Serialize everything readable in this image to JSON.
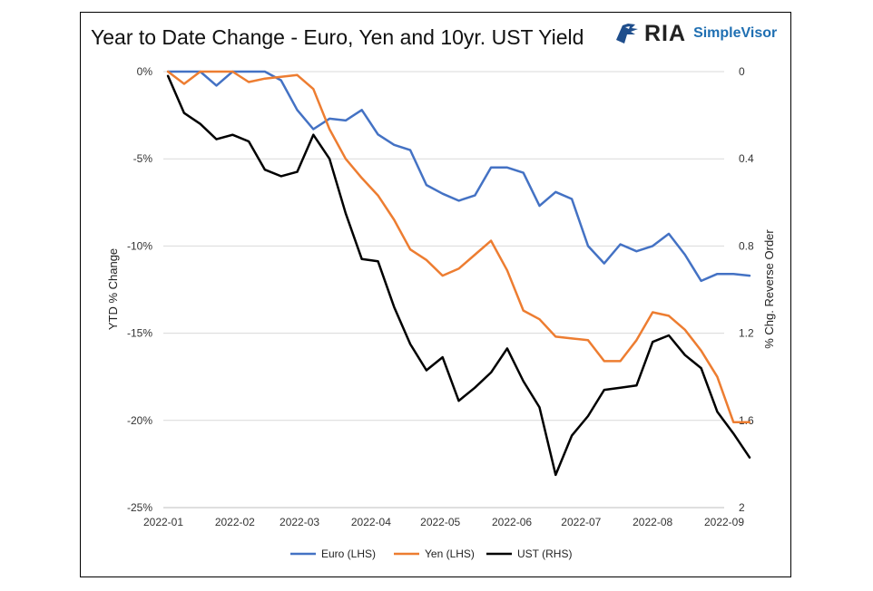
{
  "header": {
    "title": "Year to Date Change - Euro, Yen and 10yr. UST Yield",
    "logo_ria": "RIA",
    "logo_sv": "SimpleVisor"
  },
  "colors": {
    "euro": "#4472C4",
    "yen": "#ED7D31",
    "ust": "#000000",
    "grid": "#d9d9d9"
  },
  "chart_data": {
    "type": "line",
    "title": "Year to Date Change - Euro, Yen and 10yr. UST Yield",
    "xlabel": "",
    "ylabel_left": "YTD % Change",
    "ylabel_right": "% Chg. Reverse Order",
    "x_ticks": [
      "2022-01",
      "2022-02",
      "2022-03",
      "2022-04",
      "2022-05",
      "2022-06",
      "2022-07",
      "2022-08",
      "2022-09"
    ],
    "y_left_ticks": [
      "0%",
      "-5%",
      "-10%",
      "-15%",
      "-20%",
      "-25%"
    ],
    "y_left_lim": [
      -25,
      0
    ],
    "y_right_ticks": [
      "0",
      "0.4",
      "0.8",
      "1.2",
      "1.6",
      "2"
    ],
    "y_right_lim": [
      0,
      2
    ],
    "y_right_reversed": true,
    "grid": true,
    "legend_position": "bottom",
    "x": [
      "2022-01-03",
      "2022-01-10",
      "2022-01-17",
      "2022-01-24",
      "2022-01-31",
      "2022-02-07",
      "2022-02-14",
      "2022-02-21",
      "2022-02-28",
      "2022-03-07",
      "2022-03-14",
      "2022-03-21",
      "2022-03-28",
      "2022-04-04",
      "2022-04-11",
      "2022-04-18",
      "2022-04-25",
      "2022-05-02",
      "2022-05-09",
      "2022-05-16",
      "2022-05-23",
      "2022-05-30",
      "2022-06-06",
      "2022-06-13",
      "2022-06-20",
      "2022-06-27",
      "2022-07-04",
      "2022-07-11",
      "2022-07-18",
      "2022-07-25",
      "2022-08-01",
      "2022-08-08",
      "2022-08-15",
      "2022-08-22",
      "2022-08-29",
      "2022-09-05",
      "2022-09-12"
    ],
    "series": [
      {
        "name": "Euro (LHS)",
        "axis": "left",
        "color": "#4472C4",
        "values": [
          0,
          0,
          0,
          -0.8,
          0,
          0,
          0,
          -0.5,
          -2.2,
          -3.3,
          -2.7,
          -2.8,
          -2.2,
          -3.6,
          -4.2,
          -4.5,
          -6.5,
          -7.0,
          -7.4,
          -7.1,
          -5.5,
          -5.5,
          -5.8,
          -7.7,
          -6.9,
          -7.3,
          -10.0,
          -11.0,
          -9.9,
          -10.3,
          -10.0,
          -9.3,
          -10.5,
          -12.0,
          -11.6,
          -11.6,
          -11.7
        ]
      },
      {
        "name": "Yen (LHS)",
        "axis": "left",
        "color": "#ED7D31",
        "values": [
          0,
          -0.7,
          0,
          0,
          0,
          -0.6,
          -0.4,
          -0.3,
          -0.2,
          -1.0,
          -3.3,
          -5.0,
          -6.1,
          -7.1,
          -8.5,
          -10.2,
          -10.8,
          -11.7,
          -11.3,
          -10.5,
          -9.7,
          -11.4,
          -13.7,
          -14.2,
          -15.2,
          -15.3,
          -15.4,
          -16.6,
          -16.6,
          -15.4,
          -13.8,
          -14.0,
          -14.8,
          -16.0,
          -17.5,
          -20.1,
          -20.1
        ]
      },
      {
        "name": "UST (RHS)",
        "axis": "right",
        "color": "#000000",
        "values": [
          0.02,
          0.19,
          0.24,
          0.31,
          0.29,
          0.32,
          0.45,
          0.48,
          0.46,
          0.29,
          0.4,
          0.65,
          0.86,
          0.87,
          1.08,
          1.25,
          1.37,
          1.31,
          1.51,
          1.45,
          1.38,
          1.27,
          1.42,
          1.54,
          1.85,
          1.67,
          1.58,
          1.46,
          1.45,
          1.44,
          1.24,
          1.21,
          1.3,
          1.36,
          1.56,
          1.66,
          1.77
        ]
      }
    ]
  },
  "legend": [
    {
      "label": "Euro (LHS)",
      "color": "#4472C4"
    },
    {
      "label": "Yen (LHS)",
      "color": "#ED7D31"
    },
    {
      "label": "UST (RHS)",
      "color": "#000000"
    }
  ]
}
